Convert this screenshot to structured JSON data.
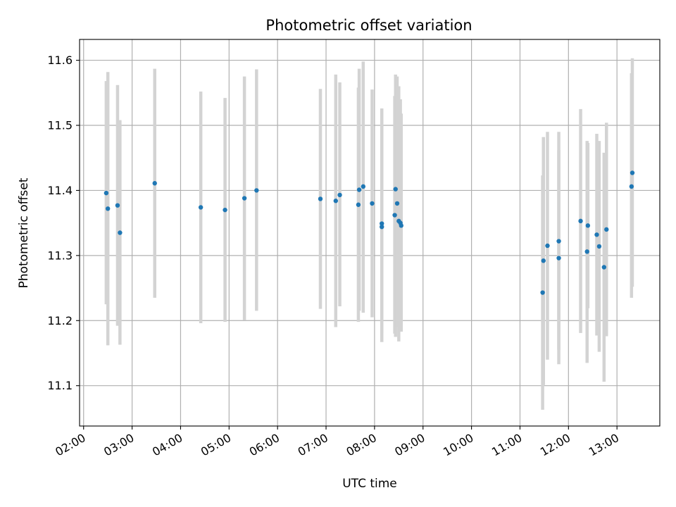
{
  "chart_data": {
    "type": "scatter",
    "title": "Photometric offset variation",
    "xlabel": "UTC time",
    "ylabel": "Photometric offset",
    "xlim": [
      "01:55",
      "13:53"
    ],
    "ylim": [
      11.038,
      11.632
    ],
    "grid": true,
    "x_ticks": [
      "02:00",
      "03:00",
      "04:00",
      "05:00",
      "06:00",
      "07:00",
      "08:00",
      "09:00",
      "10:00",
      "11:00",
      "12:00",
      "13:00"
    ],
    "y_ticks": [
      "11.1",
      "11.2",
      "11.3",
      "11.4",
      "11.5",
      "11.6"
    ],
    "errorbar_color": "#d3d3d3",
    "point_color": "#1f77b4",
    "series": [
      {
        "points": [
          {
            "t": "02:28",
            "y": 11.396,
            "ylo": 11.225,
            "yhi": 11.568
          },
          {
            "t": "02:30",
            "y": 11.372,
            "ylo": 11.162,
            "yhi": 11.582
          },
          {
            "t": "02:42",
            "y": 11.377,
            "ylo": 11.192,
            "yhi": 11.562
          },
          {
            "t": "02:45",
            "y": 11.335,
            "ylo": 11.163,
            "yhi": 11.508
          },
          {
            "t": "03:28",
            "y": 11.411,
            "ylo": 11.235,
            "yhi": 11.587
          },
          {
            "t": "04:25",
            "y": 11.374,
            "ylo": 11.196,
            "yhi": 11.552
          },
          {
            "t": "04:55",
            "y": 11.37,
            "ylo": 11.198,
            "yhi": 11.542
          },
          {
            "t": "05:19",
            "y": 11.388,
            "ylo": 11.201,
            "yhi": 11.575
          },
          {
            "t": "05:34",
            "y": 11.4,
            "ylo": 11.215,
            "yhi": 11.586
          },
          {
            "t": "06:53",
            "y": 11.387,
            "ylo": 11.218,
            "yhi": 11.556
          },
          {
            "t": "07:12",
            "y": 11.384,
            "ylo": 11.19,
            "yhi": 11.578
          },
          {
            "t": "07:17",
            "y": 11.393,
            "ylo": 11.222,
            "yhi": 11.566
          },
          {
            "t": "07:40",
            "y": 11.378,
            "ylo": 11.198,
            "yhi": 11.558
          },
          {
            "t": "07:41",
            "y": 11.401,
            "ylo": 11.215,
            "yhi": 11.587
          },
          {
            "t": "07:46",
            "y": 11.406,
            "ylo": 11.212,
            "yhi": 11.598
          },
          {
            "t": "07:57",
            "y": 11.38,
            "ylo": 11.205,
            "yhi": 11.555
          },
          {
            "t": "08:09",
            "y": 11.349,
            "ylo": 11.167,
            "yhi": 11.526
          },
          {
            "t": "08:09",
            "y": 11.344,
            "ylo": 11.18,
            "yhi": 11.508
          },
          {
            "t": "08:25",
            "y": 11.362,
            "ylo": 11.18,
            "yhi": 11.545
          },
          {
            "t": "08:26",
            "y": 11.402,
            "ylo": 11.175,
            "yhi": 11.578
          },
          {
            "t": "08:28",
            "y": 11.38,
            "ylo": 11.19,
            "yhi": 11.575
          },
          {
            "t": "08:30",
            "y": 11.353,
            "ylo": 11.168,
            "yhi": 11.56
          },
          {
            "t": "08:32",
            "y": 11.35,
            "ylo": 11.185,
            "yhi": 11.54
          },
          {
            "t": "08:33",
            "y": 11.346,
            "ylo": 11.183,
            "yhi": 11.518
          },
          {
            "t": "11:28",
            "y": 11.243,
            "ylo": 11.063,
            "yhi": 11.423
          },
          {
            "t": "11:29",
            "y": 11.292,
            "ylo": 11.101,
            "yhi": 11.482
          },
          {
            "t": "11:34",
            "y": 11.315,
            "ylo": 11.14,
            "yhi": 11.49
          },
          {
            "t": "11:48",
            "y": 11.322,
            "ylo": 11.155,
            "yhi": 11.49
          },
          {
            "t": "11:48",
            "y": 11.296,
            "ylo": 11.133,
            "yhi": 11.462
          },
          {
            "t": "12:15",
            "y": 11.353,
            "ylo": 11.181,
            "yhi": 11.525
          },
          {
            "t": "12:23",
            "y": 11.306,
            "ylo": 11.135,
            "yhi": 11.476
          },
          {
            "t": "12:24",
            "y": 11.346,
            "ylo": 11.219,
            "yhi": 11.473
          },
          {
            "t": "12:35",
            "y": 11.332,
            "ylo": 11.177,
            "yhi": 11.487
          },
          {
            "t": "12:38",
            "y": 11.314,
            "ylo": 11.152,
            "yhi": 11.476
          },
          {
            "t": "12:44",
            "y": 11.282,
            "ylo": 11.106,
            "yhi": 11.458
          },
          {
            "t": "12:47",
            "y": 11.34,
            "ylo": 11.176,
            "yhi": 11.504
          },
          {
            "t": "13:18",
            "y": 11.406,
            "ylo": 11.235,
            "yhi": 11.58
          },
          {
            "t": "13:19",
            "y": 11.427,
            "ylo": 11.252,
            "yhi": 11.603
          }
        ]
      }
    ]
  }
}
